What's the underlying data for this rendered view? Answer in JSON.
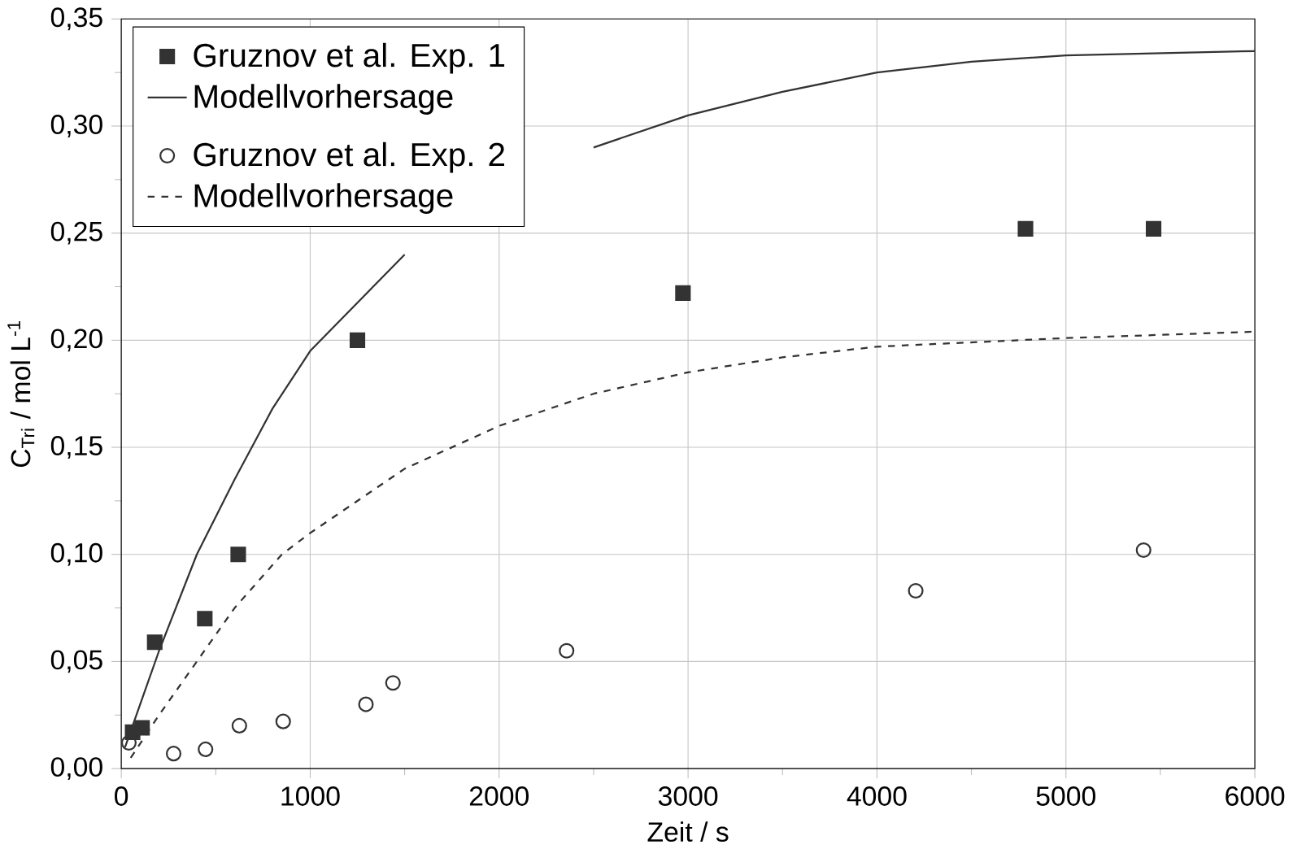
{
  "chart_data": {
    "type": "scatter",
    "xlabel": "Zeit / s",
    "ylabel": "C$_{Tri}$ / mol L$^{-1}$",
    "xlim": [
      0,
      6000
    ],
    "ylim": [
      0,
      0.35
    ],
    "xticks": [
      0,
      1000,
      2000,
      3000,
      4000,
      5000,
      6000
    ],
    "yticks": [
      {
        "value": 0,
        "label": "0,00"
      },
      {
        "value": 0.05,
        "label": "0,05"
      },
      {
        "value": 0.1,
        "label": "0,10"
      },
      {
        "value": 0.15,
        "label": "0,15"
      },
      {
        "value": 0.2,
        "label": "0,20"
      },
      {
        "value": 0.25,
        "label": "0,25"
      },
      {
        "value": 0.3,
        "label": "0,30"
      },
      {
        "value": 0.35,
        "label": "0,35"
      }
    ],
    "grid": true,
    "legend": "top left",
    "series": [
      {
        "name": "Gruznov et al. Exp. 1",
        "marker": "square",
        "color": "#333333",
        "x": [
          60,
          110,
          177,
          442,
          619,
          1250,
          2973,
          4786,
          5464
        ],
        "values": [
          0.017,
          0.019,
          0.059,
          0.07,
          0.1,
          0.2,
          0.222,
          0.252,
          0.252
        ]
      },
      {
        "name": "Modellvorhersage",
        "type": "line",
        "line_style": "solid",
        "color": "#333333",
        "x": [
          20,
          100,
          200,
          400,
          600,
          800,
          1000,
          1500,
          2000,
          2500,
          3000,
          3500,
          4000,
          4500,
          5000,
          6000
        ],
        "values": [
          0.01,
          0.03,
          0.055,
          0.1,
          0.135,
          0.168,
          0.195,
          0.24,
          null,
          0.29,
          0.305,
          0.316,
          0.325,
          0.33,
          0.333,
          0.335
        ]
      },
      {
        "name": "Gruznov et al. Exp. 2",
        "marker": "circle",
        "color": "#333333",
        "x": [
          40,
          277,
          446,
          625,
          857,
          1295,
          1438,
          2357,
          4205,
          5411
        ],
        "values": [
          0.012,
          0.007,
          0.009,
          0.02,
          0.022,
          0.03,
          0.04,
          0.055,
          0.083,
          0.102
        ]
      },
      {
        "name": "Modellvorhersage",
        "type": "line",
        "line_style": "dashed",
        "color": "#333333",
        "x": [
          50,
          200,
          400,
          600,
          850,
          1000,
          1500,
          2000,
          2500,
          3000,
          3500,
          4000,
          5000,
          6000
        ],
        "values": [
          0.005,
          0.025,
          0.05,
          0.075,
          0.1,
          0.11,
          0.14,
          0.16,
          0.175,
          0.185,
          0.192,
          0.197,
          0.201,
          0.204
        ]
      }
    ]
  }
}
